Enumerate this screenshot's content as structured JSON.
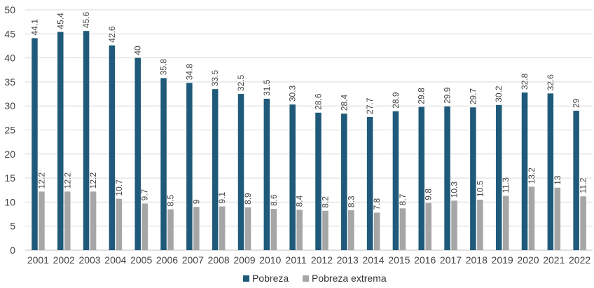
{
  "chart_data": {
    "type": "bar",
    "title": "",
    "xlabel": "",
    "ylabel": "",
    "ylim": [
      0,
      50
    ],
    "yticks": [
      0,
      5,
      10,
      15,
      20,
      25,
      30,
      35,
      40,
      45,
      50
    ],
    "grid": true,
    "legend_position": "bottom",
    "categories": [
      "2001",
      "2002",
      "2003",
      "2004",
      "2005",
      "2006",
      "2007",
      "2008",
      "2009",
      "2010",
      "2011",
      "2012",
      "2013",
      "2014",
      "2015",
      "2016",
      "2017",
      "2018",
      "2019",
      "2020",
      "2021",
      "2022"
    ],
    "series": [
      {
        "name": "Pobreza",
        "color": "#1f5a7a",
        "values": [
          44.1,
          45.4,
          45.6,
          42.6,
          40,
          35.8,
          34.8,
          33.5,
          32.5,
          31.5,
          30.3,
          28.6,
          28.4,
          27.7,
          28.9,
          29.8,
          29.9,
          29.7,
          30.2,
          32.8,
          32.6,
          29
        ],
        "labels": [
          "44.1",
          "45.4",
          "45.6",
          "42.6",
          "40",
          "35.8",
          "34.8",
          "33.5",
          "32.5",
          "31.5",
          "30.3",
          "28.6",
          "28.4",
          "27.7",
          "28.9",
          "29.8",
          "29.9",
          "29.7",
          "30.2",
          "32.8",
          "32.6",
          "29"
        ]
      },
      {
        "name": "Pobreza extrema",
        "color": "#a6a6a6",
        "values": [
          12.2,
          12.2,
          12.2,
          10.7,
          9.7,
          8.5,
          9,
          9.1,
          8.9,
          8.6,
          8.4,
          8.2,
          8.3,
          7.8,
          8.7,
          9.8,
          10.3,
          10.5,
          11.3,
          13.2,
          13,
          11.2
        ],
        "labels": [
          "12.2",
          "12.2",
          "12.2",
          "10.7",
          "9.7",
          "8.5",
          "9",
          "9.1",
          "8.9",
          "8.6",
          "8.4",
          "8.2",
          "8.3",
          "7.8",
          "8.7",
          "9.8",
          "10.3",
          "10.5",
          "11.3",
          "13.2",
          "13",
          "11.2"
        ]
      }
    ]
  }
}
